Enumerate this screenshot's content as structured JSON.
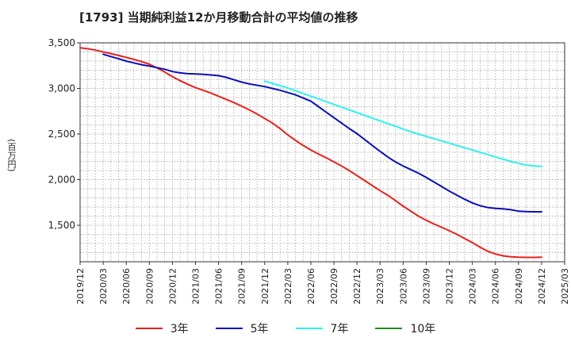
{
  "chart_data": {
    "type": "line",
    "title": "[1793] 当期純利益12か月移動合計の平均値の推移",
    "ylabel": "(百万円)",
    "xlabel": "",
    "ylim": [
      1100,
      3500
    ],
    "yticks": [
      1500,
      2000,
      2500,
      3000,
      3500
    ],
    "ytick_labels": [
      "1,500",
      "2,000",
      "2,500",
      "3,000",
      "3,500"
    ],
    "xticks": [
      "2019/12",
      "2020/03",
      "2020/06",
      "2020/09",
      "2020/12",
      "2021/03",
      "2021/06",
      "2021/09",
      "2021/12",
      "2022/03",
      "2022/06",
      "2022/09",
      "2022/12",
      "2023/03",
      "2023/06",
      "2023/09",
      "2023/12",
      "2024/03",
      "2024/06",
      "2024/09",
      "2024/12",
      "2025/03"
    ],
    "grid": true,
    "legend_position": "bottom",
    "series": [
      {
        "name": "3年",
        "color": "#e8201a",
        "points": [
          [
            "2019/12",
            3445
          ],
          [
            "2020/01",
            3435
          ],
          [
            "2020/02",
            3420
          ],
          [
            "2020/03",
            3400
          ],
          [
            "2020/04",
            3382
          ],
          [
            "2020/05",
            3362
          ],
          [
            "2020/06",
            3340
          ],
          [
            "2020/07",
            3318
          ],
          [
            "2020/08",
            3294
          ],
          [
            "2020/09",
            3265
          ],
          [
            "2020/10",
            3225
          ],
          [
            "2020/11",
            3180
          ],
          [
            "2020/12",
            3130
          ],
          [
            "2021/01",
            3085
          ],
          [
            "2021/02",
            3045
          ],
          [
            "2021/03",
            3010
          ],
          [
            "2021/04",
            2980
          ],
          [
            "2021/05",
            2950
          ],
          [
            "2021/06",
            2915
          ],
          [
            "2021/07",
            2880
          ],
          [
            "2021/08",
            2845
          ],
          [
            "2021/09",
            2805
          ],
          [
            "2021/10",
            2765
          ],
          [
            "2021/11",
            2720
          ],
          [
            "2021/12",
            2670
          ],
          [
            "2022/01",
            2620
          ],
          [
            "2022/02",
            2560
          ],
          [
            "2022/03",
            2490
          ],
          [
            "2022/04",
            2430
          ],
          [
            "2022/05",
            2375
          ],
          [
            "2022/06",
            2325
          ],
          [
            "2022/07",
            2280
          ],
          [
            "2022/08",
            2240
          ],
          [
            "2022/09",
            2195
          ],
          [
            "2022/10",
            2150
          ],
          [
            "2022/11",
            2100
          ],
          [
            "2022/12",
            2045
          ],
          [
            "2023/01",
            1990
          ],
          [
            "2023/02",
            1935
          ],
          [
            "2023/03",
            1880
          ],
          [
            "2023/04",
            1830
          ],
          [
            "2023/05",
            1770
          ],
          [
            "2023/06",
            1710
          ],
          [
            "2023/07",
            1655
          ],
          [
            "2023/08",
            1600
          ],
          [
            "2023/09",
            1555
          ],
          [
            "2023/10",
            1515
          ],
          [
            "2023/11",
            1478
          ],
          [
            "2023/12",
            1440
          ],
          [
            "2024/01",
            1400
          ],
          [
            "2024/02",
            1355
          ],
          [
            "2024/03",
            1310
          ],
          [
            "2024/04",
            1260
          ],
          [
            "2024/05",
            1215
          ],
          [
            "2024/06",
            1185
          ],
          [
            "2024/07",
            1165
          ],
          [
            "2024/08",
            1155
          ],
          [
            "2024/09",
            1150
          ],
          [
            "2024/10",
            1148
          ],
          [
            "2024/11",
            1148
          ],
          [
            "2024/12",
            1150
          ]
        ]
      },
      {
        "name": "5年",
        "color": "#0a0fb5",
        "points": [
          [
            "2020/03",
            3375
          ],
          [
            "2020/04",
            3350
          ],
          [
            "2020/05",
            3325
          ],
          [
            "2020/06",
            3300
          ],
          [
            "2020/07",
            3280
          ],
          [
            "2020/08",
            3260
          ],
          [
            "2020/09",
            3245
          ],
          [
            "2020/10",
            3228
          ],
          [
            "2020/11",
            3210
          ],
          [
            "2020/12",
            3185
          ],
          [
            "2021/01",
            3170
          ],
          [
            "2021/02",
            3162
          ],
          [
            "2021/03",
            3158
          ],
          [
            "2021/04",
            3155
          ],
          [
            "2021/05",
            3148
          ],
          [
            "2021/06",
            3140
          ],
          [
            "2021/07",
            3122
          ],
          [
            "2021/08",
            3095
          ],
          [
            "2021/09",
            3070
          ],
          [
            "2021/10",
            3050
          ],
          [
            "2021/11",
            3035
          ],
          [
            "2021/12",
            3020
          ],
          [
            "2022/01",
            3000
          ],
          [
            "2022/02",
            2980
          ],
          [
            "2022/03",
            2955
          ],
          [
            "2022/04",
            2930
          ],
          [
            "2022/05",
            2895
          ],
          [
            "2022/06",
            2860
          ],
          [
            "2022/07",
            2800
          ],
          [
            "2022/08",
            2740
          ],
          [
            "2022/09",
            2680
          ],
          [
            "2022/10",
            2620
          ],
          [
            "2022/11",
            2560
          ],
          [
            "2022/12",
            2505
          ],
          [
            "2023/01",
            2440
          ],
          [
            "2023/02",
            2375
          ],
          [
            "2023/03",
            2310
          ],
          [
            "2023/04",
            2250
          ],
          [
            "2023/05",
            2195
          ],
          [
            "2023/06",
            2150
          ],
          [
            "2023/07",
            2110
          ],
          [
            "2023/08",
            2070
          ],
          [
            "2023/09",
            2025
          ],
          [
            "2023/10",
            1975
          ],
          [
            "2023/11",
            1925
          ],
          [
            "2023/12",
            1875
          ],
          [
            "2024/01",
            1830
          ],
          [
            "2024/02",
            1785
          ],
          [
            "2024/03",
            1745
          ],
          [
            "2024/04",
            1715
          ],
          [
            "2024/05",
            1695
          ],
          [
            "2024/06",
            1685
          ],
          [
            "2024/07",
            1680
          ],
          [
            "2024/08",
            1670
          ],
          [
            "2024/09",
            1655
          ],
          [
            "2024/10",
            1650
          ],
          [
            "2024/11",
            1648
          ],
          [
            "2024/12",
            1648
          ]
        ]
      },
      {
        "name": "7年",
        "color": "#2ff0ef",
        "points": [
          [
            "2021/12",
            3080
          ],
          [
            "2022/01",
            3055
          ],
          [
            "2022/02",
            3030
          ],
          [
            "2022/03",
            3005
          ],
          [
            "2022/04",
            2975
          ],
          [
            "2022/05",
            2945
          ],
          [
            "2022/06",
            2915
          ],
          [
            "2022/07",
            2885
          ],
          [
            "2022/08",
            2855
          ],
          [
            "2022/09",
            2825
          ],
          [
            "2022/10",
            2795
          ],
          [
            "2022/11",
            2765
          ],
          [
            "2022/12",
            2735
          ],
          [
            "2023/01",
            2705
          ],
          [
            "2023/02",
            2675
          ],
          [
            "2023/03",
            2645
          ],
          [
            "2023/04",
            2615
          ],
          [
            "2023/05",
            2585
          ],
          [
            "2023/06",
            2555
          ],
          [
            "2023/07",
            2525
          ],
          [
            "2023/08",
            2500
          ],
          [
            "2023/09",
            2475
          ],
          [
            "2023/10",
            2450
          ],
          [
            "2023/11",
            2425
          ],
          [
            "2023/12",
            2400
          ],
          [
            "2024/01",
            2375
          ],
          [
            "2024/02",
            2350
          ],
          [
            "2024/03",
            2325
          ],
          [
            "2024/04",
            2300
          ],
          [
            "2024/05",
            2275
          ],
          [
            "2024/06",
            2250
          ],
          [
            "2024/07",
            2225
          ],
          [
            "2024/08",
            2200
          ],
          [
            "2024/09",
            2180
          ],
          [
            "2024/10",
            2160
          ],
          [
            "2024/11",
            2150
          ],
          [
            "2024/12",
            2145
          ]
        ]
      },
      {
        "name": "10年",
        "color": "#1a8f1a",
        "points": []
      }
    ]
  }
}
